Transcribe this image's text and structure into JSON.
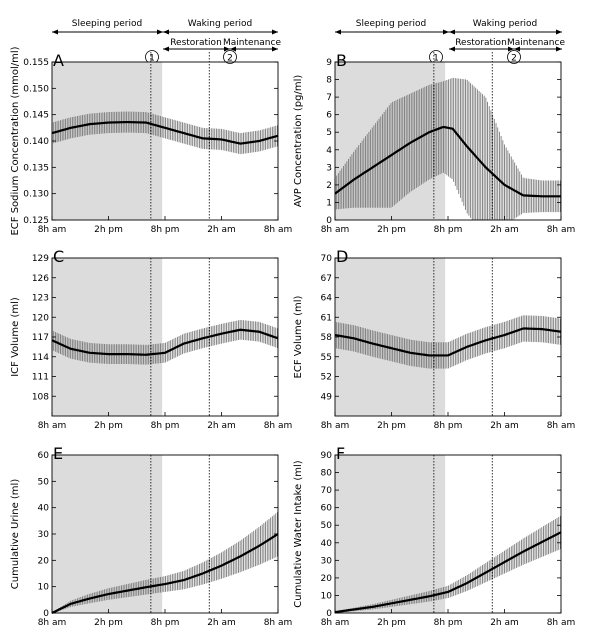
{
  "x_ticks": [
    "8h am",
    "2h pm",
    "8h pm",
    "2h am",
    "8h am"
  ],
  "periods": {
    "sleeping": "Sleeping period",
    "waking": "Waking period",
    "restoration": "Restoration",
    "maintenance": "Maintenance"
  },
  "events": [
    "1",
    "2"
  ],
  "colors": {
    "shade": "#dcdcdc",
    "band": "#7a7a7a",
    "line": "#000000"
  },
  "chart_data": [
    {
      "panel": "A",
      "type": "line",
      "ylabel": "ECF Sodium Concentration (mmol/ml)",
      "ylim": [
        0.125,
        0.155
      ],
      "yticks": [
        0.125,
        0.13,
        0.135,
        0.14,
        0.145,
        0.15,
        0.155
      ],
      "ytick_labels": [
        "0.125",
        "0.130",
        "0.135",
        "0.140",
        "0.145",
        "0.150",
        "0.155"
      ],
      "x_hours": [
        0,
        2,
        4,
        6,
        8,
        10,
        12,
        14,
        16,
        18,
        20,
        22,
        24
      ],
      "mean": [
        0.1415,
        0.1425,
        0.1432,
        0.1435,
        0.1436,
        0.1435,
        0.1425,
        0.1415,
        0.1405,
        0.1403,
        0.1395,
        0.14,
        0.141
      ],
      "err": [
        0.002,
        0.002,
        0.002,
        0.002,
        0.002,
        0.002,
        0.002,
        0.002,
        0.002,
        0.002,
        0.002,
        0.002,
        0.002
      ]
    },
    {
      "panel": "B",
      "type": "line",
      "ylabel": "AVP Concentration (pg/ml)",
      "ylim": [
        0,
        9
      ],
      "yticks": [
        0,
        1,
        2,
        3,
        4,
        5,
        6,
        7,
        8,
        9
      ],
      "ytick_labels": [
        "0",
        "1",
        "2",
        "3",
        "4",
        "5",
        "6",
        "7",
        "8",
        "9"
      ],
      "x_hours": [
        0,
        2,
        4,
        6,
        8,
        10,
        11.5,
        12.5,
        14,
        16,
        18,
        20,
        22,
        24
      ],
      "mean": [
        1.5,
        2.3,
        3.0,
        3.7,
        4.4,
        5.0,
        5.3,
        5.2,
        4.2,
        3.0,
        2.0,
        1.4,
        1.35,
        1.35
      ],
      "err": [
        0.9,
        1.6,
        2.3,
        3.0,
        2.8,
        2.7,
        2.6,
        2.9,
        3.8,
        4.0,
        2.3,
        1.0,
        0.9,
        0.9
      ]
    },
    {
      "panel": "C",
      "type": "line",
      "ylabel": "ICF Volume (ml)",
      "ylim": [
        105,
        129
      ],
      "yticks": [
        108,
        111,
        114,
        117,
        120,
        123,
        126,
        129
      ],
      "ytick_labels": [
        "108",
        "111",
        "114",
        "117",
        "120",
        "123",
        "126",
        "129"
      ],
      "x_hours": [
        0,
        2,
        4,
        6,
        8,
        10,
        12,
        14,
        16,
        18,
        20,
        22,
        24
      ],
      "mean": [
        116.5,
        115.2,
        114.6,
        114.4,
        114.4,
        114.3,
        114.6,
        116.0,
        116.8,
        117.5,
        118.1,
        117.8,
        116.8
      ],
      "err": [
        1.5,
        1.5,
        1.5,
        1.5,
        1.5,
        1.5,
        1.5,
        1.5,
        1.5,
        1.5,
        1.5,
        1.5,
        1.5
      ]
    },
    {
      "panel": "D",
      "type": "line",
      "ylabel": "ECF Volume (ml)",
      "ylim": [
        46,
        70
      ],
      "yticks": [
        49,
        52,
        55,
        58,
        61,
        64,
        67,
        70
      ],
      "ytick_labels": [
        "49",
        "52",
        "55",
        "58",
        "61",
        "64",
        "67",
        "70"
      ],
      "x_hours": [
        0,
        2,
        4,
        6,
        8,
        10,
        12,
        14,
        16,
        18,
        20,
        22,
        24
      ],
      "mean": [
        58.3,
        57.8,
        57.0,
        56.3,
        55.6,
        55.2,
        55.2,
        56.5,
        57.5,
        58.3,
        59.3,
        59.2,
        58.8
      ],
      "err": [
        2.0,
        2.0,
        2.0,
        2.0,
        2.0,
        2.0,
        2.0,
        2.0,
        2.0,
        2.0,
        2.0,
        2.0,
        2.0
      ]
    },
    {
      "panel": "E",
      "type": "line",
      "ylabel": "Cumulative Urine (ml)",
      "ylim": [
        0,
        60
      ],
      "yticks": [
        0,
        10,
        20,
        30,
        40,
        50,
        60
      ],
      "ytick_labels": [
        "0",
        "10",
        "20",
        "30",
        "40",
        "50",
        "60"
      ],
      "x_hours": [
        0,
        2,
        4,
        6,
        8,
        10,
        12,
        14,
        16,
        18,
        20,
        22,
        24
      ],
      "mean": [
        0,
        3.5,
        5.5,
        7.2,
        8.5,
        9.8,
        11.0,
        12.5,
        15.0,
        18.0,
        21.5,
        25.5,
        30.0
      ],
      "err": [
        0.2,
        1.2,
        1.8,
        2.2,
        2.5,
        2.8,
        3.0,
        3.5,
        4.2,
        5.0,
        6.0,
        7.2,
        8.5
      ]
    },
    {
      "panel": "F",
      "type": "line",
      "ylabel": "Cumulative Water Intake (ml)",
      "ylim": [
        0,
        90
      ],
      "yticks": [
        0,
        10,
        20,
        30,
        40,
        50,
        60,
        70,
        80,
        90
      ],
      "ytick_labels": [
        "0",
        "10",
        "20",
        "30",
        "40",
        "50",
        "60",
        "70",
        "80",
        "90"
      ],
      "x_hours": [
        0,
        2,
        4,
        6,
        8,
        10,
        12,
        14,
        16,
        18,
        20,
        22,
        24
      ],
      "mean": [
        0.5,
        2.0,
        3.5,
        5.5,
        7.5,
        9.5,
        12.0,
        17.0,
        23.0,
        29.0,
        35.0,
        40.5,
        46.0
      ],
      "err": [
        0.5,
        1.0,
        1.5,
        2.0,
        2.5,
        3.0,
        3.5,
        4.5,
        5.5,
        6.5,
        7.5,
        8.5,
        9.5
      ]
    }
  ]
}
